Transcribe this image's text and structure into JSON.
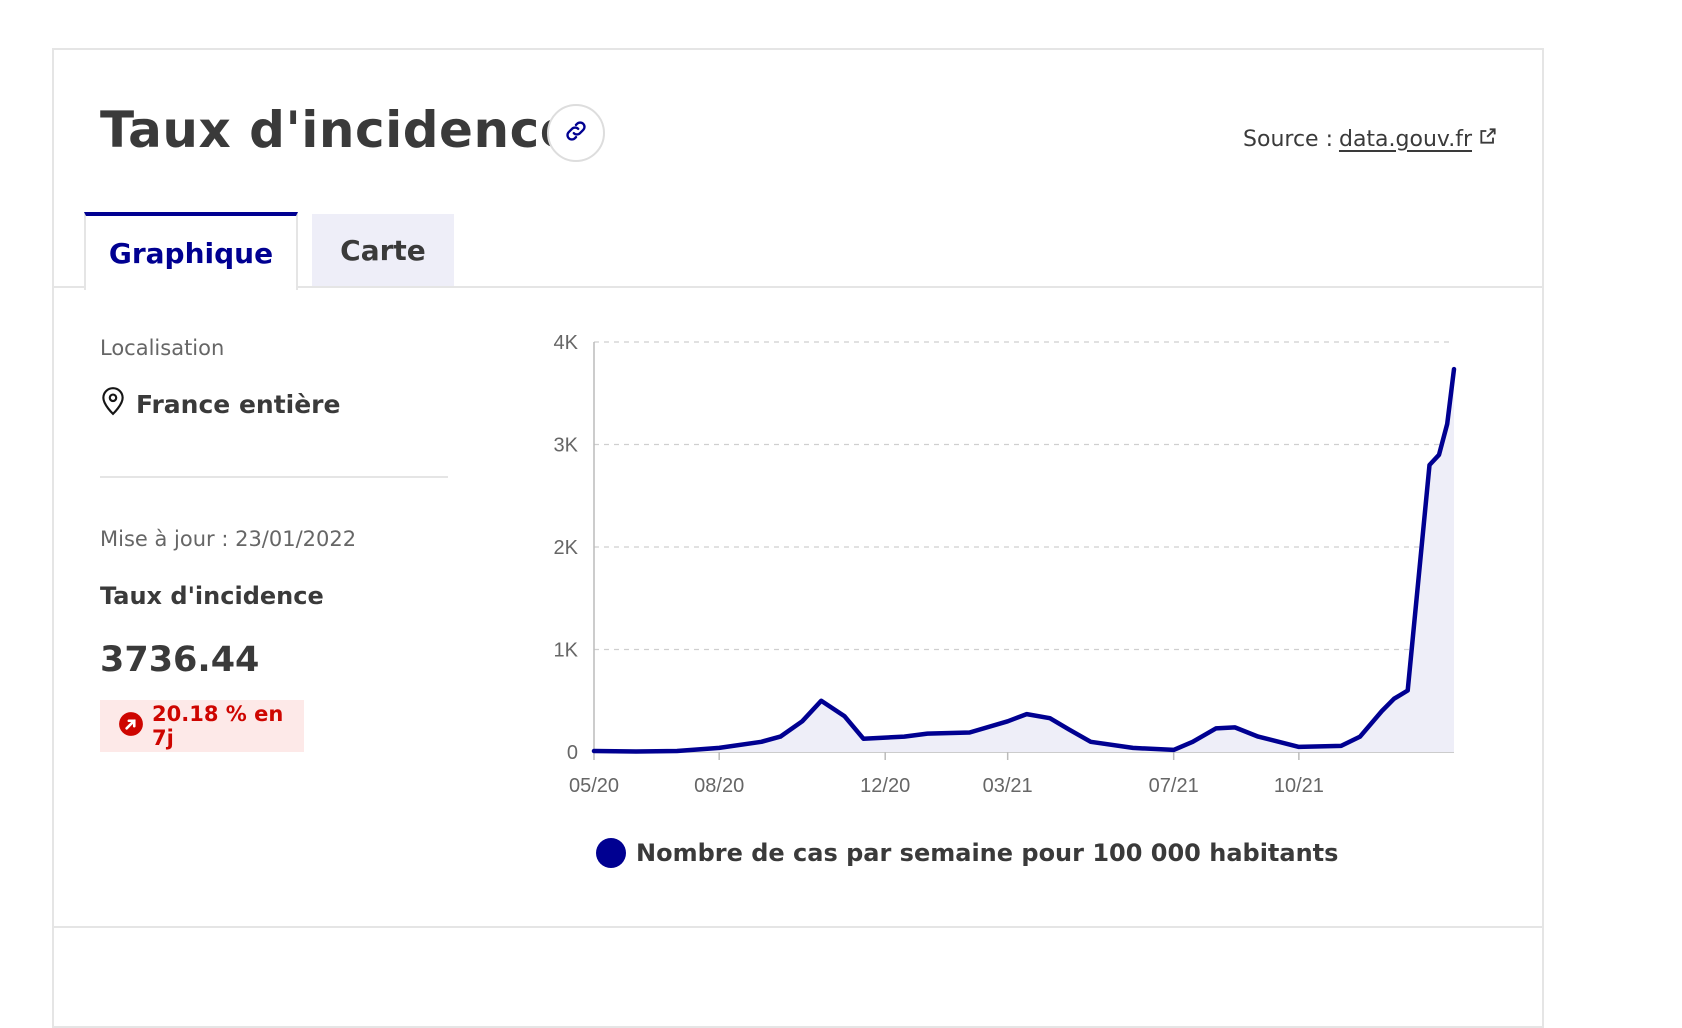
{
  "header": {
    "title": "Taux d'incidence",
    "source_label": "Source :",
    "source_link": "data.gouv.fr"
  },
  "tabs": [
    {
      "label": "Graphique",
      "active": true
    },
    {
      "label": "Carte",
      "active": false
    }
  ],
  "sidebar": {
    "location_label": "Localisation",
    "location_value": "France entière",
    "updated": "Mise à jour : 23/01/2022",
    "metric_label": "Taux d'incidence",
    "metric_value": "3736.44",
    "change": "20.18 % en 7j"
  },
  "colors": {
    "accent": "#000091",
    "negative": "#ce0500",
    "negative_bg": "#fde9e8",
    "area_fill": "#eeeef8"
  },
  "icons": [
    "link-icon",
    "external-link-icon",
    "location-pin-icon",
    "arrow-up-right-circle-icon"
  ],
  "chart_data": {
    "type": "area",
    "title": "",
    "xlabel": "",
    "ylabel": "",
    "x_ticks": [
      "05/20",
      "08/20",
      "12/20",
      "03/21",
      "07/21",
      "10/21"
    ],
    "y_ticks": [
      "0",
      "1K",
      "2K",
      "3K",
      "4K"
    ],
    "ylim": [
      0,
      4000
    ],
    "xlim": [
      "2020-05",
      "2022-01-23"
    ],
    "grid": true,
    "legend_position": "bottom",
    "series": [
      {
        "name": "Nombre de cas par semaine pour 100 000 habitants",
        "x": [
          "2020-05",
          "2020-06",
          "2020-07",
          "2020-08",
          "2020-09",
          "2020-09-15",
          "2020-10",
          "2020-10-15",
          "2020-11",
          "2020-11-15",
          "2020-12",
          "2020-12-15",
          "2021-01",
          "2021-02",
          "2021-03",
          "2021-03-15",
          "2021-04",
          "2021-04-15",
          "2021-05",
          "2021-06",
          "2021-07",
          "2021-07-15",
          "2021-08",
          "2021-08-15",
          "2021-09",
          "2021-10",
          "2021-11",
          "2021-11-15",
          "2021-12",
          "2021-12-10",
          "2021-12-20",
          "2021-12-28",
          "2022-01-05",
          "2022-01-12",
          "2022-01-18",
          "2022-01-23"
        ],
        "y": [
          10,
          5,
          10,
          40,
          100,
          150,
          300,
          500,
          350,
          130,
          140,
          150,
          180,
          190,
          300,
          370,
          330,
          220,
          100,
          40,
          20,
          100,
          230,
          240,
          150,
          50,
          60,
          150,
          400,
          520,
          600,
          1700,
          2800,
          2900,
          3200,
          3736
        ]
      }
    ]
  }
}
